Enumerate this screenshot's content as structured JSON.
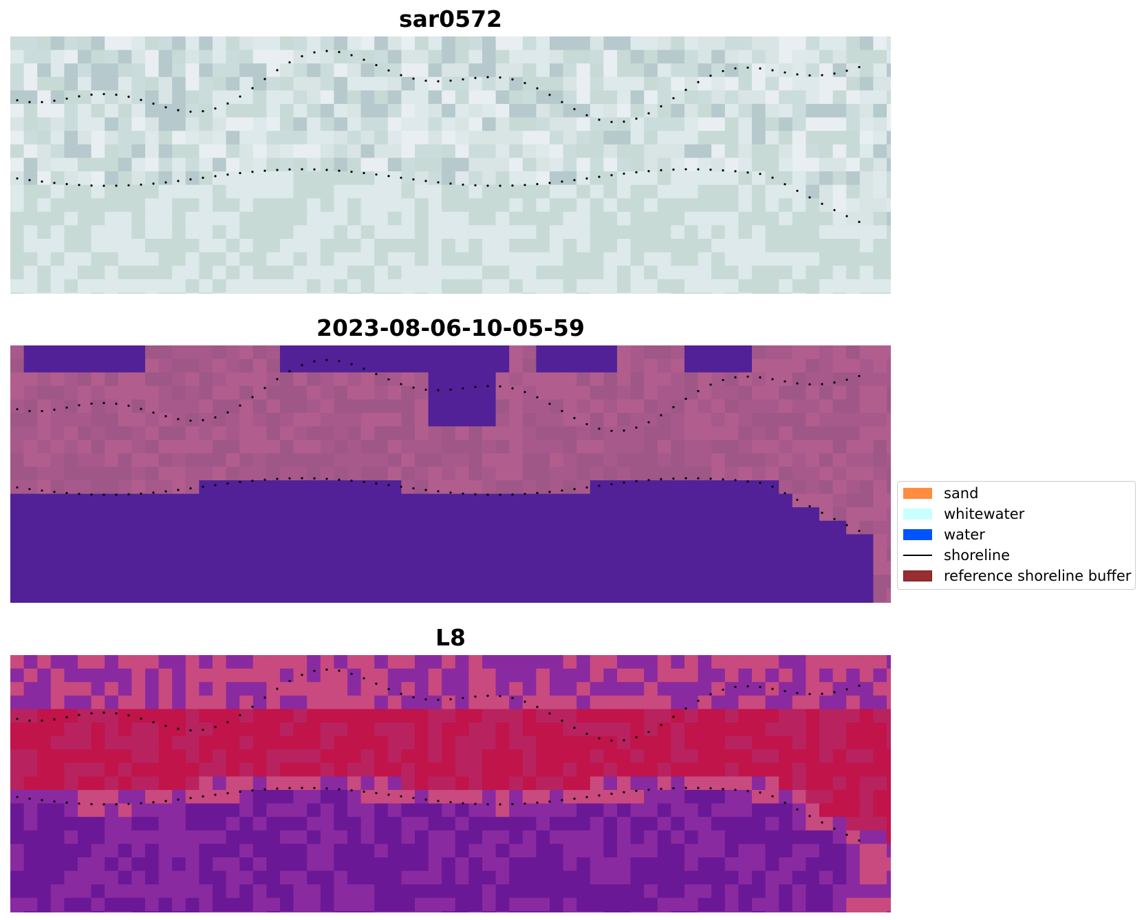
{
  "panels": [
    {
      "title": "sar0572",
      "palette": "rgb",
      "colors": [
        "#c8dad6",
        "#dde9ea",
        "#b6c9cd",
        "#e8eef2",
        "#d9e4e4",
        "#cbdcdc"
      ]
    },
    {
      "title": "2023-08-06-10-05-59",
      "palette": "classified",
      "colors": [
        "#a8598c",
        "#b15e8e",
        "#9f5788",
        "#522198"
      ]
    },
    {
      "title": "L8",
      "palette": "index",
      "colors": [
        "#c0144a",
        "#c94a7e",
        "#8a2aa0",
        "#6a1896",
        "#b8235f"
      ]
    }
  ],
  "legend": {
    "items": [
      {
        "label": "sand",
        "type": "patch",
        "color": "#ff8c3f"
      },
      {
        "label": "whitewater",
        "type": "patch",
        "color": "#c8ffff"
      },
      {
        "label": "water",
        "type": "patch",
        "color": "#0054ff"
      },
      {
        "label": "shoreline",
        "type": "line",
        "color": "#000000"
      },
      {
        "label": "reference shoreline buffer",
        "type": "patch",
        "color": "#9a2d30",
        "edge": "#6e1f22"
      }
    ]
  }
}
